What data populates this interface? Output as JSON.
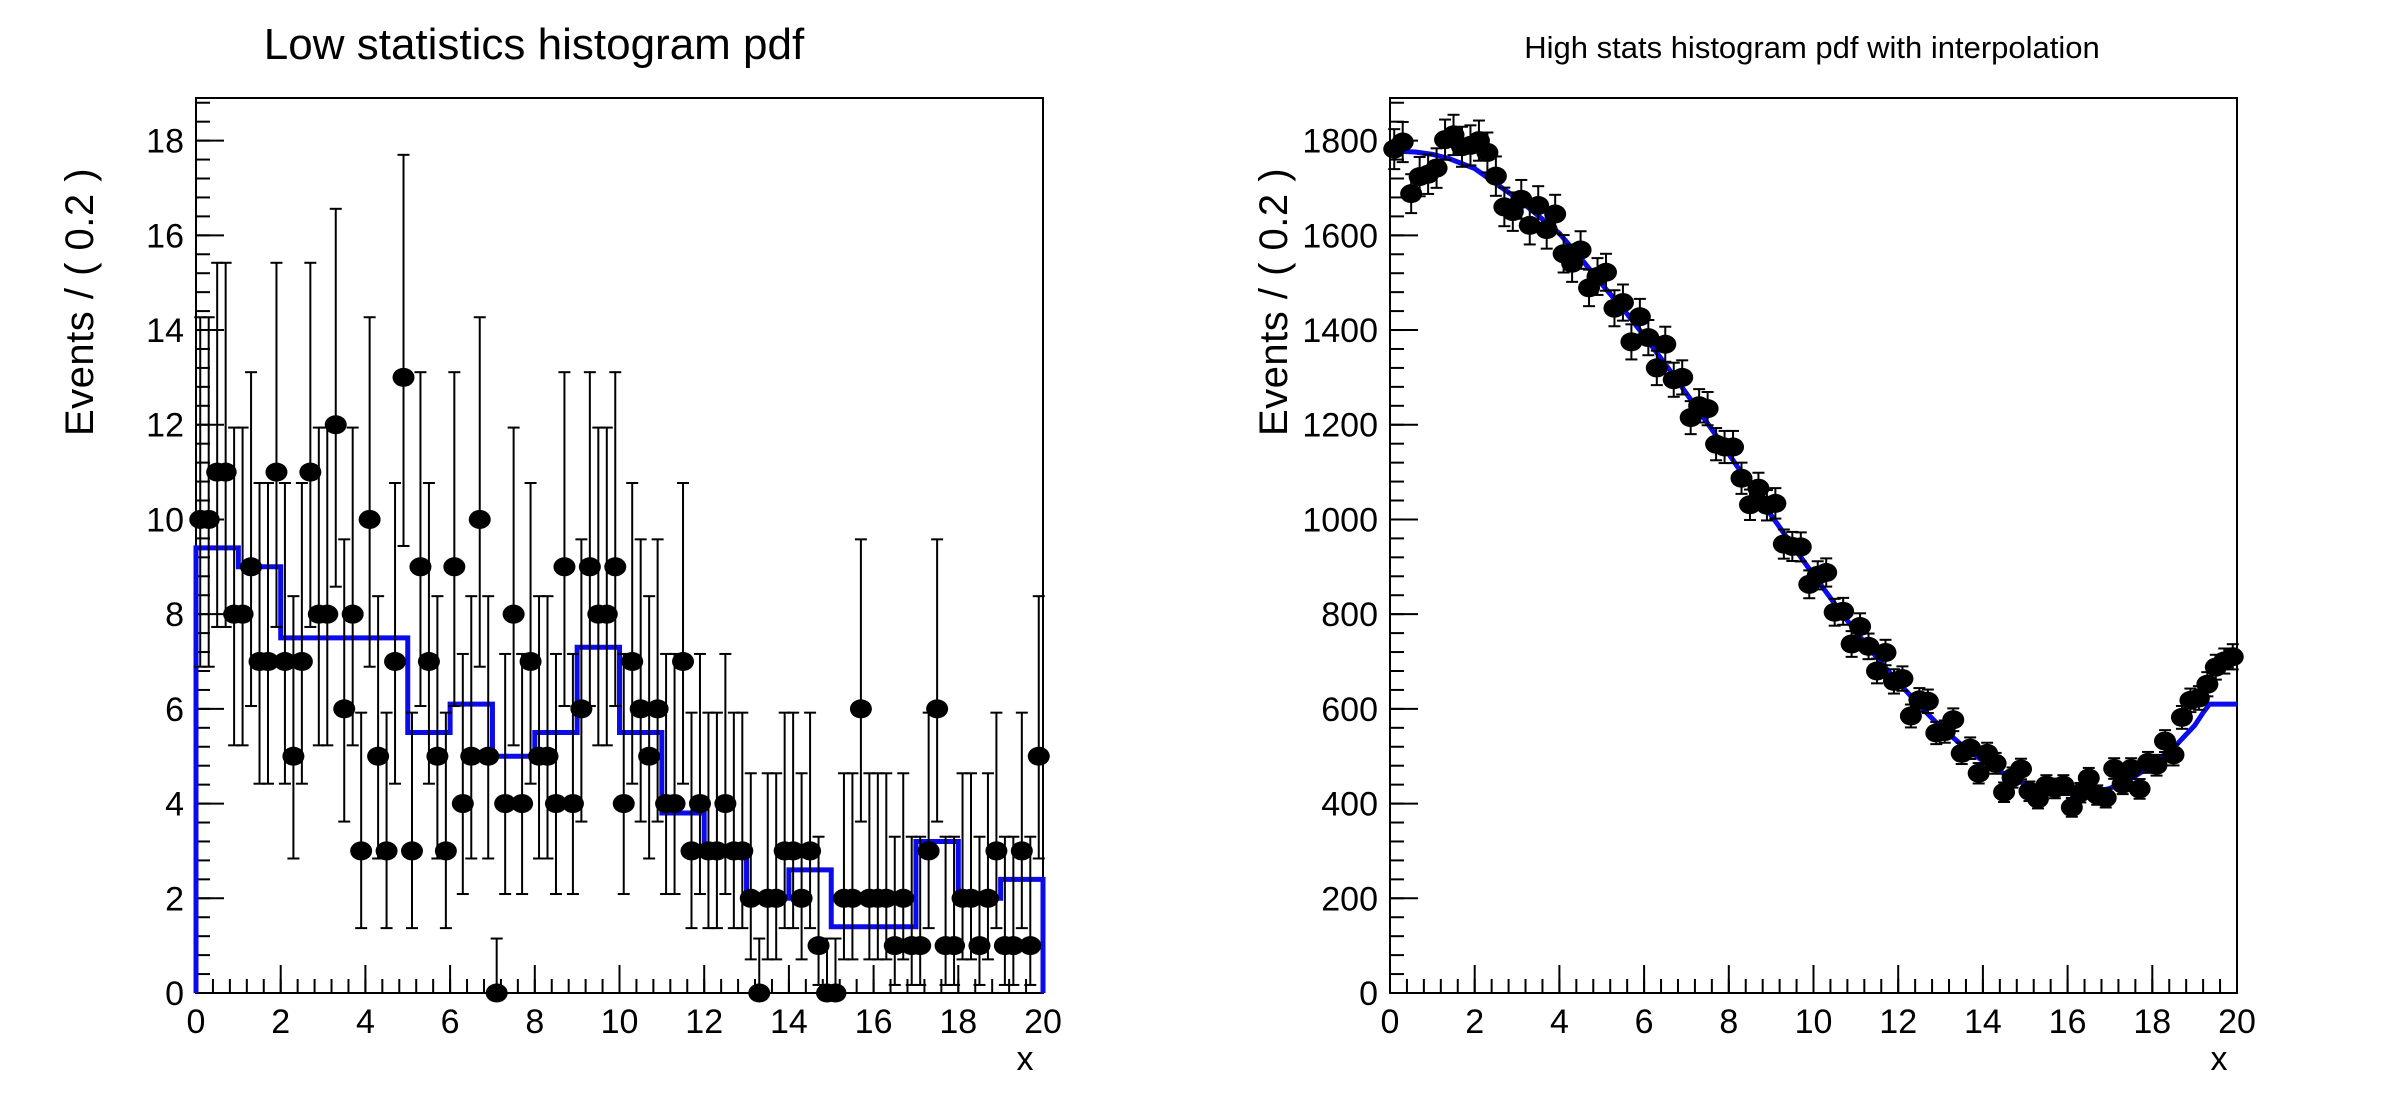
{
  "page": {
    "background": "#ffffff",
    "frame_color": "#000000"
  },
  "chart_data": [
    {
      "type": "scatter",
      "title": "Low statistics histogram pdf",
      "xlabel": "x",
      "ylabel": "Events / ( 0.2 )",
      "xlim": [
        0,
        20
      ],
      "ylim": [
        0,
        18.9
      ],
      "grid": false,
      "legend": "none",
      "x_ticks": [
        0,
        2,
        4,
        6,
        8,
        10,
        12,
        14,
        16,
        18,
        20
      ],
      "y_ticks": [
        0,
        2,
        4,
        6,
        8,
        10,
        12,
        14,
        16,
        18
      ],
      "x_minor_step": 0.4,
      "y_minor_step": 0.4,
      "marker_color": "#000000",
      "curve_color": "#0b0beb",
      "error_mode": "poisson",
      "series": [
        {
          "name": "binned-data-points",
          "x": [
            0.1,
            0.3,
            0.5,
            0.7,
            0.9,
            1.1,
            1.3,
            1.5,
            1.7,
            1.9,
            2.1,
            2.3,
            2.5,
            2.7,
            2.9,
            3.1,
            3.3,
            3.5,
            3.7,
            3.9,
            4.1,
            4.3,
            4.5,
            4.7,
            4.9,
            5.1,
            5.3,
            5.5,
            5.7,
            5.9,
            6.1,
            6.3,
            6.5,
            6.7,
            6.9,
            7.1,
            7.3,
            7.5,
            7.7,
            7.9,
            8.1,
            8.3,
            8.5,
            8.7,
            8.9,
            9.1,
            9.3,
            9.5,
            9.7,
            9.9,
            10.1,
            10.3,
            10.5,
            10.7,
            10.9,
            11.1,
            11.3,
            11.5,
            11.7,
            11.9,
            12.1,
            12.3,
            12.5,
            12.7,
            12.9,
            13.1,
            13.3,
            13.5,
            13.7,
            13.9,
            14.1,
            14.3,
            14.5,
            14.7,
            14.9,
            15.1,
            15.3,
            15.5,
            15.7,
            15.9,
            16.1,
            16.3,
            16.5,
            16.7,
            16.9,
            17.1,
            17.3,
            17.5,
            17.7,
            17.9,
            18.1,
            18.3,
            18.5,
            18.7,
            18.9,
            19.1,
            19.3,
            19.5,
            19.7,
            19.9
          ],
          "y": [
            10,
            10,
            11,
            11,
            8,
            8,
            9,
            7,
            7,
            11,
            7,
            5,
            7,
            11,
            8,
            8,
            12,
            6,
            8,
            3,
            10,
            5,
            3,
            7,
            13,
            3,
            9,
            7,
            5,
            3,
            9,
            4,
            5,
            10,
            5,
            0,
            4,
            8,
            4,
            7,
            5,
            5,
            4,
            9,
            4,
            6,
            9,
            8,
            8,
            9,
            4,
            7,
            6,
            5,
            6,
            4,
            4,
            7,
            3,
            4,
            3,
            3,
            4,
            3,
            3,
            2,
            0,
            2,
            2,
            3,
            3,
            2,
            3,
            1,
            0,
            0,
            2,
            2,
            6,
            2,
            2,
            2,
            1,
            2,
            1,
            1,
            3,
            6,
            1,
            1,
            2,
            2,
            1,
            2,
            3,
            1,
            1,
            3,
            1,
            5
          ]
        },
        {
          "name": "histpdf-step-20bins",
          "bin_start": 0,
          "bin_width": 1,
          "levels": [
            9.4,
            9.0,
            7.5,
            7.5,
            7.5,
            5.5,
            6.1,
            5.0,
            5.5,
            7.3,
            5.5,
            3.8,
            3.0,
            2.0,
            2.6,
            1.4,
            1.4,
            3.2,
            2.0,
            2.4
          ]
        }
      ]
    },
    {
      "type": "scatter",
      "title": "High stats histogram pdf with interpolation",
      "xlabel": "x",
      "ylabel": "Events / ( 0.2 )",
      "xlim": [
        0,
        20
      ],
      "ylim": [
        0,
        1890
      ],
      "grid": false,
      "legend": "none",
      "x_ticks": [
        0,
        2,
        4,
        6,
        8,
        10,
        12,
        14,
        16,
        18,
        20
      ],
      "y_ticks": [
        0,
        200,
        400,
        600,
        800,
        1000,
        1200,
        1400,
        1600,
        1800
      ],
      "x_minor_step": 0.4,
      "y_minor_step": 40,
      "marker_color": "#000000",
      "curve_color": "#0b0beb",
      "error_mode": "sqrt",
      "series": [
        {
          "name": "binned-data-points",
          "x": [
            0.1,
            0.3,
            0.5,
            0.7,
            0.9,
            1.1,
            1.3,
            1.5,
            1.7,
            1.9,
            2.1,
            2.3,
            2.5,
            2.7,
            2.9,
            3.1,
            3.3,
            3.5,
            3.7,
            3.9,
            4.1,
            4.3,
            4.5,
            4.7,
            4.9,
            5.1,
            5.3,
            5.5,
            5.7,
            5.9,
            6.1,
            6.3,
            6.5,
            6.7,
            6.9,
            7.1,
            7.3,
            7.5,
            7.7,
            7.9,
            8.1,
            8.3,
            8.5,
            8.7,
            8.9,
            9.1,
            9.3,
            9.5,
            9.7,
            9.9,
            10.1,
            10.3,
            10.5,
            10.7,
            10.9,
            11.1,
            11.3,
            11.5,
            11.7,
            11.9,
            12.1,
            12.3,
            12.5,
            12.7,
            12.9,
            13.1,
            13.3,
            13.5,
            13.7,
            13.9,
            14.1,
            14.3,
            14.5,
            14.7,
            14.9,
            15.1,
            15.3,
            15.5,
            15.7,
            15.9,
            16.1,
            16.3,
            16.5,
            16.7,
            16.9,
            17.1,
            17.3,
            17.5,
            17.7,
            17.9,
            18.1,
            18.3,
            18.5,
            18.7,
            18.9,
            19.1,
            19.3,
            19.5,
            19.7,
            19.9
          ],
          "y": [
            1782,
            1797,
            1688,
            1724,
            1729,
            1742,
            1802,
            1812,
            1787,
            1790,
            1800,
            1775,
            1725,
            1660,
            1650,
            1676,
            1621,
            1663,
            1612,
            1645,
            1561,
            1541,
            1569,
            1489,
            1513,
            1522,
            1446,
            1458,
            1375,
            1428,
            1384,
            1320,
            1370,
            1295,
            1300,
            1215,
            1240,
            1234,
            1159,
            1153,
            1153,
            1087,
            1031,
            1066,
            1030,
            1034,
            948,
            943,
            942,
            863,
            882,
            888,
            804,
            806,
            737,
            774,
            732,
            680,
            719,
            658,
            664,
            585,
            619,
            616,
            549,
            552,
            577,
            506,
            517,
            464,
            506,
            485,
            424,
            455,
            473,
            426,
            410,
            439,
            432,
            439,
            392,
            423,
            454,
            418,
            412,
            474,
            441,
            474,
            431,
            487,
            481,
            532,
            503,
            582,
            618,
            623,
            652,
            688,
            701,
            710
          ]
        },
        {
          "name": "histpdf-interpolated-curve",
          "curve": [
            [
              0,
              1778
            ],
            [
              0.6,
              1776
            ],
            [
              1.0,
              1771
            ],
            [
              1.4,
              1762
            ],
            [
              2.0,
              1741
            ],
            [
              2.6,
              1703
            ],
            [
              3.0,
              1678
            ],
            [
              3.4,
              1649
            ],
            [
              4.0,
              1604
            ],
            [
              4.6,
              1541
            ],
            [
              5.0,
              1497
            ],
            [
              5.6,
              1434
            ],
            [
              6.0,
              1388
            ],
            [
              6.6,
              1316
            ],
            [
              7.0,
              1266
            ],
            [
              7.6,
              1190
            ],
            [
              8.0,
              1138
            ],
            [
              8.6,
              1060
            ],
            [
              9.0,
              1009
            ],
            [
              9.6,
              933
            ],
            [
              10.0,
              883
            ],
            [
              10.6,
              810
            ],
            [
              11.0,
              763
            ],
            [
              11.6,
              697
            ],
            [
              12.0,
              656
            ],
            [
              12.6,
              598
            ],
            [
              13.0,
              562
            ],
            [
              13.6,
              516
            ],
            [
              14.0,
              490
            ],
            [
              14.6,
              458
            ],
            [
              15.0,
              441
            ],
            [
              15.6,
              426
            ],
            [
              16.0,
              421
            ],
            [
              16.6,
              424
            ],
            [
              17.0,
              432
            ],
            [
              17.6,
              458
            ],
            [
              18.0,
              482
            ],
            [
              18.6,
              527
            ],
            [
              19.0,
              565
            ],
            [
              19.2,
              592
            ],
            [
              19.35,
              610
            ],
            [
              20,
              610
            ]
          ]
        }
      ]
    }
  ]
}
